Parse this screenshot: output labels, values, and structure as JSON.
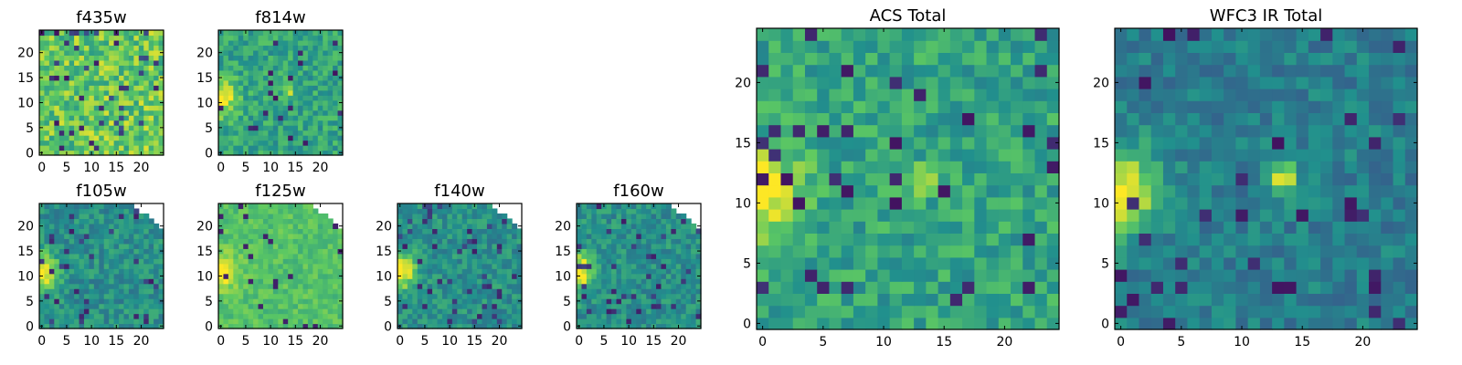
{
  "figure": {
    "background": "#ffffff",
    "colormap": "viridis",
    "colormap_stops": [
      "#440154",
      "#3b528b",
      "#21908d",
      "#5dc962",
      "#fde725"
    ]
  },
  "chart_data": [
    {
      "type": "heatmap",
      "title": "f435w",
      "xlabel": "",
      "ylabel": "",
      "xlim": [
        0,
        24
      ],
      "ylim": [
        0,
        24
      ],
      "xticks": [
        "0",
        "5",
        "10",
        "15",
        "20"
      ],
      "yticks": [
        "0",
        "5",
        "10",
        "15",
        "20"
      ],
      "grid_size": 25,
      "grid": false,
      "pattern": "noisy_bright",
      "colormap": "viridis"
    },
    {
      "type": "heatmap",
      "title": "f814w",
      "xlabel": "",
      "ylabel": "",
      "xlim": [
        0,
        24
      ],
      "ylim": [
        0,
        24
      ],
      "xticks": [
        "0",
        "5",
        "10",
        "15",
        "20"
      ],
      "yticks": [
        "0",
        "5",
        "10",
        "15",
        "20"
      ],
      "grid_size": 25,
      "grid": false,
      "pattern": "source_left",
      "colormap": "viridis"
    },
    {
      "type": "heatmap",
      "title": "f105w",
      "xlabel": "",
      "ylabel": "",
      "xlim": [
        0,
        24
      ],
      "ylim": [
        0,
        24
      ],
      "xticks": [
        "0",
        "5",
        "10",
        "15",
        "20"
      ],
      "yticks": [
        "0",
        "5",
        "10",
        "15",
        "20"
      ],
      "grid_size": 25,
      "grid": false,
      "pattern": "ir_masked",
      "colormap": "viridis"
    },
    {
      "type": "heatmap",
      "title": "f125w",
      "xlabel": "",
      "ylabel": "",
      "xlim": [
        0,
        24
      ],
      "ylim": [
        0,
        24
      ],
      "xticks": [
        "0",
        "5",
        "10",
        "15",
        "20"
      ],
      "yticks": [
        "0",
        "5",
        "10",
        "15",
        "20"
      ],
      "grid_size": 25,
      "grid": false,
      "pattern": "ir_masked_bright",
      "colormap": "viridis"
    },
    {
      "type": "heatmap",
      "title": "f140w",
      "xlabel": "",
      "ylabel": "",
      "xlim": [
        0,
        24
      ],
      "ylim": [
        0,
        24
      ],
      "xticks": [
        "0",
        "5",
        "10",
        "15",
        "20"
      ],
      "yticks": [
        "0",
        "5",
        "10",
        "15",
        "20"
      ],
      "grid_size": 25,
      "grid": false,
      "pattern": "ir_masked",
      "colormap": "viridis"
    },
    {
      "type": "heatmap",
      "title": "f160w",
      "xlabel": "",
      "ylabel": "",
      "xlim": [
        0,
        24
      ],
      "ylim": [
        0,
        24
      ],
      "xticks": [
        "0",
        "5",
        "10",
        "15",
        "20"
      ],
      "yticks": [
        "0",
        "5",
        "10",
        "15",
        "20"
      ],
      "grid_size": 25,
      "grid": false,
      "pattern": "ir_masked",
      "colormap": "viridis"
    },
    {
      "type": "heatmap",
      "title": "ACS Total",
      "xlabel": "",
      "ylabel": "",
      "xlim": [
        0,
        24
      ],
      "ylim": [
        0,
        24
      ],
      "xticks": [
        "0",
        "5",
        "10",
        "15",
        "20"
      ],
      "yticks": [
        "0",
        "5",
        "10",
        "15",
        "20"
      ],
      "grid_size": 25,
      "grid": false,
      "pattern": "source_left",
      "colormap": "viridis"
    },
    {
      "type": "heatmap",
      "title": "WFC3 IR Total",
      "xlabel": "",
      "ylabel": "",
      "xlim": [
        0,
        24
      ],
      "ylim": [
        0,
        24
      ],
      "xticks": [
        "0",
        "5",
        "10",
        "15",
        "20"
      ],
      "yticks": [
        "0",
        "5",
        "10",
        "15",
        "20"
      ],
      "grid_size": 25,
      "grid": false,
      "pattern": "ir_total",
      "colormap": "viridis"
    }
  ]
}
